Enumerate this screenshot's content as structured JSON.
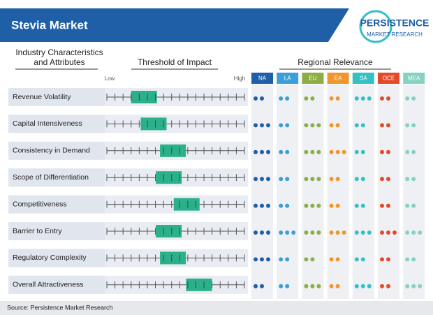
{
  "header": {
    "title": "Stevia Market",
    "brand": "PERSISTENCE",
    "brand_sub": "MARKET RESEARCH"
  },
  "columns": {
    "attributes": "Industry Characteristics and Attributes",
    "threshold": "Threshold of Impact",
    "regional": "Regional Relevance",
    "low": "Low",
    "high": "High"
  },
  "regions": [
    {
      "name": "NA",
      "color": "#1f5fa8"
    },
    {
      "name": "LA",
      "color": "#3a9fd8"
    },
    {
      "name": "EU",
      "color": "#8cae45"
    },
    {
      "name": "EA",
      "color": "#f0962a"
    },
    {
      "name": "SA",
      "color": "#35c0c4"
    },
    {
      "name": "OCE",
      "color": "#e44a2a"
    },
    {
      "name": "MEA",
      "color": "#86d2c2"
    }
  ],
  "rows": [
    {
      "label": "Revenue Volatility",
      "impact": 0.27,
      "dots": [
        2,
        2,
        2,
        2,
        3,
        2,
        2
      ]
    },
    {
      "label": "Capital Intensiveness",
      "impact": 0.34,
      "dots": [
        3,
        2,
        3,
        2,
        2,
        2,
        2
      ]
    },
    {
      "label": "Consistency in Demand",
      "impact": 0.48,
      "dots": [
        3,
        2,
        3,
        3,
        2,
        2,
        2
      ]
    },
    {
      "label": "Scope of Differentiation",
      "impact": 0.45,
      "dots": [
        3,
        2,
        3,
        2,
        2,
        2,
        2
      ]
    },
    {
      "label": "Competitiveness",
      "impact": 0.58,
      "dots": [
        3,
        2,
        3,
        2,
        2,
        2,
        2
      ]
    },
    {
      "label": "Barrier to Entry",
      "impact": 0.45,
      "dots": [
        3,
        3,
        3,
        3,
        3,
        3,
        3
      ]
    },
    {
      "label": "Regulatory Complexity",
      "impact": 0.48,
      "dots": [
        3,
        2,
        2,
        2,
        2,
        2,
        2
      ]
    },
    {
      "label": "Overall Attractiveness",
      "impact": 0.67,
      "dots": [
        2,
        2,
        3,
        2,
        3,
        2,
        3
      ]
    }
  ],
  "footer": {
    "source": "Source: Persistence Market Research"
  }
}
